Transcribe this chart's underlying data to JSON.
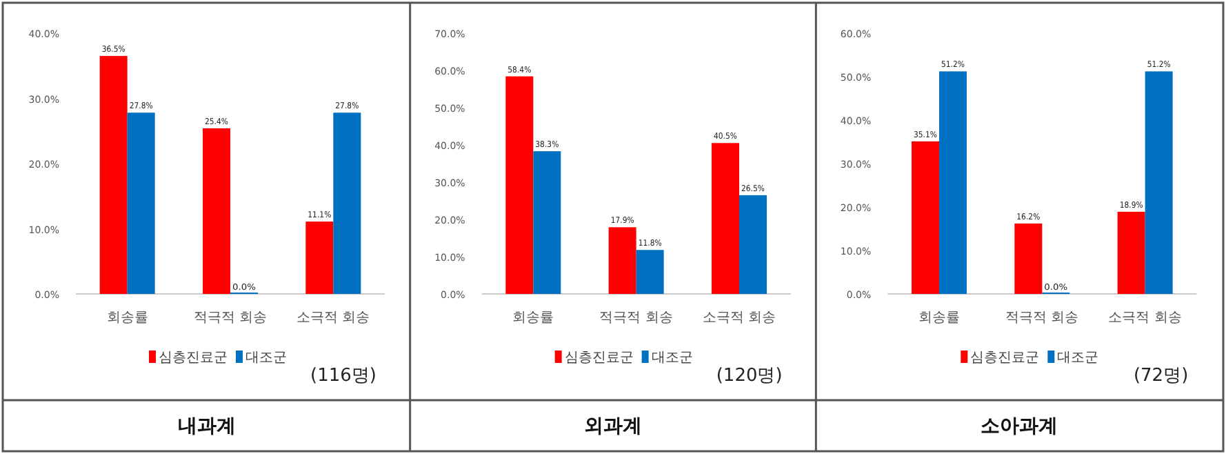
{
  "chart_data": [
    {
      "type": "bar",
      "title": "내과계",
      "categories": [
        "회송률",
        "적극적 회송",
        "소극적 회송"
      ],
      "series": [
        {
          "name": "심층진료군",
          "color": "#ff0000",
          "values": [
            36.5,
            25.4,
            11.1
          ],
          "value_labels": [
            "36.5%",
            "25.4%",
            "11.1%"
          ]
        },
        {
          "name": "대조군",
          "color": "#0070c0",
          "values": [
            27.8,
            0.0,
            27.8
          ],
          "value_labels": [
            "27.8%",
            "0.0%",
            "27.8%"
          ]
        }
      ],
      "ylim": [
        0,
        40
      ],
      "yticks": [
        {
          "value": 0,
          "label": "0.0%"
        },
        {
          "value": 10,
          "label": "10.0%"
        },
        {
          "value": 20,
          "label": "20.0%"
        },
        {
          "value": 30,
          "label": "30.0%"
        },
        {
          "value": 40,
          "label": "40.0%"
        }
      ],
      "legend": "bottom",
      "annotations": [
        "(116명)"
      ]
    },
    {
      "type": "bar",
      "title": "외과계",
      "categories": [
        "회송률",
        "적극적 회송",
        "소극적 회송"
      ],
      "series": [
        {
          "name": "심층진료군",
          "color": "#ff0000",
          "values": [
            58.4,
            17.9,
            40.5
          ],
          "value_labels": [
            "58.4%",
            "17.9%",
            "40.5%"
          ]
        },
        {
          "name": "대조군",
          "color": "#0070c0",
          "values": [
            38.3,
            11.8,
            26.5
          ],
          "value_labels": [
            "38.3%",
            "11.8%",
            "26.5%"
          ]
        }
      ],
      "ylim": [
        0,
        70
      ],
      "yticks": [
        {
          "value": 0,
          "label": "0.0%"
        },
        {
          "value": 10,
          "label": "10.0%"
        },
        {
          "value": 20,
          "label": "20.0%"
        },
        {
          "value": 30,
          "label": "30.0%"
        },
        {
          "value": 40,
          "label": "40.0%"
        },
        {
          "value": 50,
          "label": "50.0%"
        },
        {
          "value": 60,
          "label": "60.0%"
        },
        {
          "value": 70,
          "label": "70.0%"
        }
      ],
      "legend": "bottom",
      "annotations": [
        "(120명)"
      ]
    },
    {
      "type": "bar",
      "title": "소아과계",
      "categories": [
        "회송률",
        "적극적 회송",
        "소극적 회송"
      ],
      "series": [
        {
          "name": "심층진료군",
          "color": "#ff0000",
          "values": [
            35.1,
            16.2,
            18.9
          ],
          "value_labels": [
            "35.1%",
            "16.2%",
            "18.9%"
          ]
        },
        {
          "name": "대조군",
          "color": "#0070c0",
          "values": [
            51.2,
            0.0,
            51.2
          ],
          "value_labels": [
            "51.2%",
            "0.0%",
            "51.2%"
          ]
        }
      ],
      "ylim": [
        0,
        60
      ],
      "yticks": [
        {
          "value": 0,
          "label": "0.0%"
        },
        {
          "value": 10,
          "label": "10.0%"
        },
        {
          "value": 20,
          "label": "20.0%"
        },
        {
          "value": 30,
          "label": "30.0%"
        },
        {
          "value": 40,
          "label": "40.0%"
        },
        {
          "value": 50,
          "label": "50.0%"
        },
        {
          "value": 60,
          "label": "60.0%"
        }
      ],
      "legend": "bottom",
      "annotations": [
        "(72명)"
      ]
    }
  ]
}
